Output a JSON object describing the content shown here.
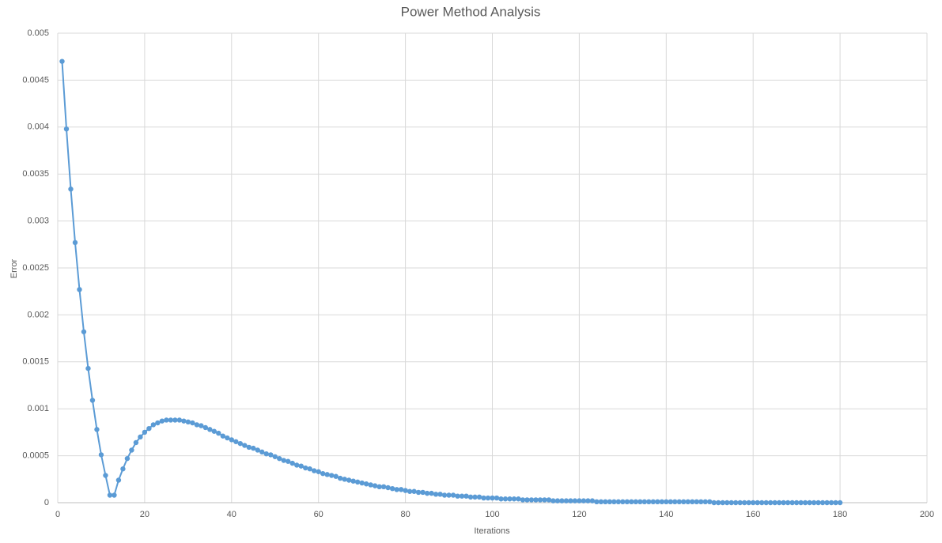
{
  "chart_data": {
    "type": "scatter-line",
    "title": "Power Method Analysis",
    "x_label": "Iterations",
    "y_label": "Error",
    "color": "#5b9bd5",
    "grid": true,
    "xlim": [
      0,
      200
    ],
    "xticks": [
      0,
      20,
      40,
      60,
      80,
      100,
      120,
      140,
      160,
      180,
      200
    ],
    "ylim": [
      0,
      0.005
    ],
    "yticks": [
      0,
      0.0005,
      0.001,
      0.0015,
      0.002,
      0.0025,
      0.003,
      0.0035,
      0.004,
      0.0045,
      0.005
    ],
    "x": [
      1,
      2,
      3,
      4,
      5,
      6,
      7,
      8,
      9,
      10,
      11,
      12,
      13,
      14,
      15,
      16,
      17,
      18,
      19,
      20,
      21,
      22,
      23,
      24,
      25,
      26,
      27,
      28,
      29,
      30,
      31,
      32,
      33,
      34,
      35,
      36,
      37,
      38,
      39,
      40,
      41,
      42,
      43,
      44,
      45,
      46,
      47,
      48,
      49,
      50,
      51,
      52,
      53,
      54,
      55,
      56,
      57,
      58,
      59,
      60,
      61,
      62,
      63,
      64,
      65,
      66,
      67,
      68,
      69,
      70,
      71,
      72,
      73,
      74,
      75,
      76,
      77,
      78,
      79,
      80,
      81,
      82,
      83,
      84,
      85,
      86,
      87,
      88,
      89,
      90,
      91,
      92,
      93,
      94,
      95,
      96,
      97,
      98,
      99,
      100,
      101,
      102,
      103,
      104,
      105,
      106,
      107,
      108,
      109,
      110,
      111,
      112,
      113,
      114,
      115,
      116,
      117,
      118,
      119,
      120,
      121,
      122,
      123,
      124,
      125,
      126,
      127,
      128,
      129,
      130,
      131,
      132,
      133,
      134,
      135,
      136,
      137,
      138,
      139,
      140,
      141,
      142,
      143,
      144,
      145,
      146,
      147,
      148,
      149,
      150,
      151,
      152,
      153,
      154,
      155,
      156,
      157,
      158,
      159,
      160,
      161,
      162,
      163,
      164,
      165,
      166,
      167,
      168,
      169,
      170,
      171,
      172,
      173,
      174,
      175,
      176,
      177,
      178,
      179,
      180
    ],
    "values": [
      0.0047,
      0.00398,
      0.00334,
      0.00277,
      0.00227,
      0.00182,
      0.00143,
      0.00109,
      0.00078,
      0.00051,
      0.00029,
      8e-05,
      8e-05,
      0.00024,
      0.00036,
      0.00047,
      0.00056,
      0.00064,
      0.0007,
      0.00075,
      0.00079,
      0.00083,
      0.00085,
      0.00087,
      0.00088,
      0.00088,
      0.00088,
      0.00088,
      0.00087,
      0.00086,
      0.00085,
      0.00083,
      0.00082,
      0.0008,
      0.00078,
      0.00076,
      0.00074,
      0.00071,
      0.00069,
      0.00067,
      0.00065,
      0.00063,
      0.00061,
      0.00059,
      0.00058,
      0.00056,
      0.00054,
      0.00052,
      0.00051,
      0.00049,
      0.00047,
      0.00045,
      0.00044,
      0.00042,
      0.0004,
      0.00039,
      0.00037,
      0.00036,
      0.00034,
      0.00033,
      0.00031,
      0.0003,
      0.00029,
      0.00028,
      0.00026,
      0.00025,
      0.00024,
      0.00023,
      0.00022,
      0.00021,
      0.0002,
      0.00019,
      0.00018,
      0.00017,
      0.00017,
      0.00016,
      0.00015,
      0.00014,
      0.00014,
      0.00013,
      0.00012,
      0.00012,
      0.00011,
      0.00011,
      0.0001,
      0.0001,
      9e-05,
      9e-05,
      8e-05,
      8e-05,
      8e-05,
      7e-05,
      7e-05,
      7e-05,
      6e-05,
      6e-05,
      6e-05,
      5e-05,
      5e-05,
      5e-05,
      5e-05,
      4e-05,
      4e-05,
      4e-05,
      4e-05,
      4e-05,
      3e-05,
      3e-05,
      3e-05,
      3e-05,
      3e-05,
      3e-05,
      3e-05,
      2e-05,
      2e-05,
      2e-05,
      2e-05,
      2e-05,
      2e-05,
      2e-05,
      2e-05,
      2e-05,
      2e-05,
      1e-05,
      1e-05,
      1e-05,
      1e-05,
      1e-05,
      1e-05,
      1e-05,
      1e-05,
      1e-05,
      1e-05,
      1e-05,
      1e-05,
      1e-05,
      1e-05,
      1e-05,
      1e-05,
      1e-05,
      1e-05,
      1e-05,
      1e-05,
      1e-05,
      1e-05,
      1e-05,
      1e-05,
      1e-05,
      1e-05,
      1e-05,
      0,
      0,
      0,
      0,
      0,
      0,
      0,
      0,
      0,
      0,
      0,
      0,
      0,
      0,
      0,
      0,
      0,
      0,
      0,
      0,
      0,
      0,
      0,
      0,
      0,
      0,
      0,
      0,
      0,
      0
    ]
  }
}
